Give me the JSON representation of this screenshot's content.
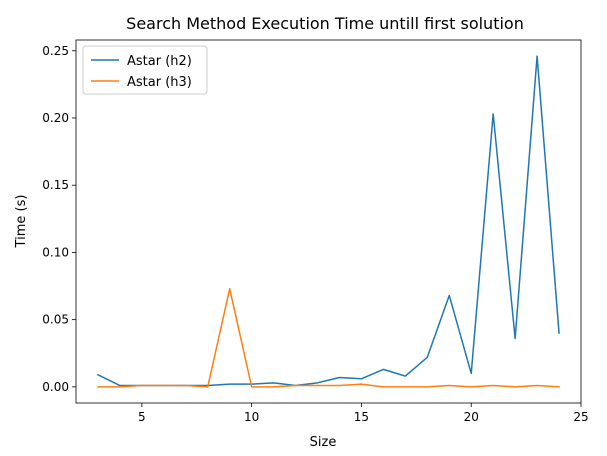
{
  "chart_data": {
    "type": "line",
    "title": "Search Method Execution Time untill first solution",
    "xlabel": "Size",
    "ylabel": "Time (s)",
    "xlim": [
      2,
      25
    ],
    "ylim": [
      -0.012,
      0.258
    ],
    "xticks": [
      5,
      10,
      15,
      20,
      25
    ],
    "yticks": [
      0.0,
      0.05,
      0.1,
      0.15,
      0.2,
      0.25
    ],
    "xtick_labels": [
      "5",
      "10",
      "15",
      "20",
      "25"
    ],
    "ytick_labels": [
      "0.00",
      "0.05",
      "0.10",
      "0.15",
      "0.20",
      "0.25"
    ],
    "legend_position": "upper-left",
    "grid": false,
    "x": [
      3,
      4,
      5,
      6,
      7,
      8,
      9,
      10,
      11,
      12,
      13,
      14,
      15,
      16,
      17,
      18,
      19,
      20,
      21,
      22,
      23,
      24
    ],
    "series": [
      {
        "name": "Astar (h2)",
        "color": "#1f77b4",
        "values": [
          0.009,
          0.001,
          0.001,
          0.001,
          0.001,
          0.001,
          0.002,
          0.002,
          0.003,
          0.001,
          0.003,
          0.007,
          0.006,
          0.013,
          0.008,
          0.022,
          0.068,
          0.01,
          0.203,
          0.036,
          0.246,
          0.04
        ]
      },
      {
        "name": "Astar (h3)",
        "color": "#ff7f0e",
        "values": [
          0.0,
          0.0,
          0.001,
          0.001,
          0.001,
          0.0,
          0.073,
          0.0,
          0.0,
          0.001,
          0.001,
          0.001,
          0.002,
          0.0,
          0.0,
          0.0,
          0.001,
          0.0,
          0.001,
          0.0,
          0.001,
          0.0
        ]
      }
    ]
  }
}
